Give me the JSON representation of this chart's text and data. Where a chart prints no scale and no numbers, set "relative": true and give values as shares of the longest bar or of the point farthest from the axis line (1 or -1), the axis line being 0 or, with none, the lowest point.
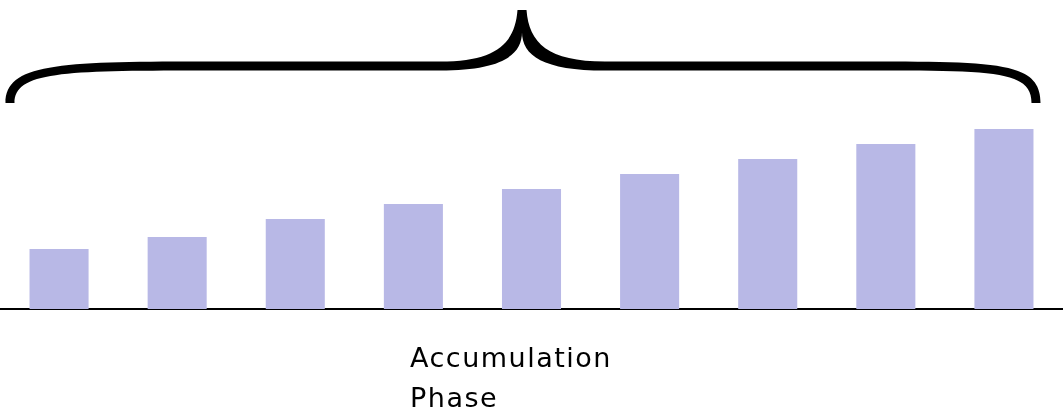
{
  "chart_data": {
    "type": "bar",
    "relative": true,
    "xlabel": "Accumulation\nPhase",
    "categories": [
      null,
      null,
      null,
      null,
      null,
      null,
      null,
      null,
      null
    ],
    "values": [
      0.333,
      0.4,
      0.5,
      0.583,
      0.667,
      0.75,
      0.833,
      0.917,
      1
    ],
    "color": "#b8b8e6",
    "grid": false,
    "legend": false
  }
}
